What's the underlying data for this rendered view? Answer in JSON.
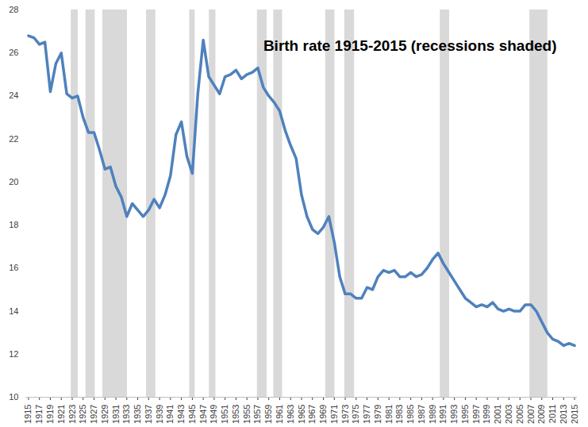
{
  "chart_data": {
    "type": "line",
    "title": "Birth rate 1915-2015 (recessions shaded)",
    "x": [
      1915,
      1916,
      1917,
      1918,
      1919,
      1920,
      1921,
      1922,
      1923,
      1924,
      1925,
      1926,
      1927,
      1928,
      1929,
      1930,
      1931,
      1932,
      1933,
      1934,
      1935,
      1936,
      1937,
      1938,
      1939,
      1940,
      1941,
      1942,
      1943,
      1944,
      1945,
      1946,
      1947,
      1948,
      1949,
      1950,
      1951,
      1952,
      1953,
      1954,
      1955,
      1956,
      1957,
      1958,
      1959,
      1960,
      1961,
      1962,
      1963,
      1964,
      1965,
      1966,
      1967,
      1968,
      1969,
      1970,
      1971,
      1972,
      1973,
      1974,
      1975,
      1976,
      1977,
      1978,
      1979,
      1980,
      1981,
      1982,
      1983,
      1984,
      1985,
      1986,
      1987,
      1988,
      1989,
      1990,
      1991,
      1992,
      1993,
      1994,
      1995,
      1996,
      1997,
      1998,
      1999,
      2000,
      2001,
      2002,
      2003,
      2004,
      2005,
      2006,
      2007,
      2008,
      2009,
      2010,
      2011,
      2012,
      2013,
      2014,
      2015
    ],
    "values": [
      26.8,
      26.7,
      26.4,
      26.5,
      24.2,
      25.5,
      26.0,
      24.1,
      23.9,
      24.0,
      23.0,
      22.3,
      22.3,
      21.5,
      20.6,
      20.7,
      19.8,
      19.3,
      18.4,
      19.0,
      18.7,
      18.4,
      18.7,
      19.2,
      18.8,
      19.4,
      20.3,
      22.2,
      22.8,
      21.2,
      20.4,
      24.1,
      26.6,
      24.9,
      24.5,
      24.1,
      24.9,
      25.0,
      25.2,
      24.8,
      25.0,
      25.1,
      25.3,
      24.4,
      24.0,
      23.7,
      23.3,
      22.4,
      21.7,
      21.1,
      19.4,
      18.4,
      17.8,
      17.6,
      17.9,
      18.4,
      17.2,
      15.6,
      14.8,
      14.8,
      14.6,
      14.6,
      15.1,
      15.0,
      15.6,
      15.9,
      15.8,
      15.9,
      15.6,
      15.6,
      15.8,
      15.6,
      15.7,
      16.0,
      16.4,
      16.7,
      16.2,
      15.8,
      15.4,
      15.0,
      14.6,
      14.4,
      14.2,
      14.3,
      14.2,
      14.4,
      14.1,
      14.0,
      14.1,
      14.0,
      14.0,
      14.3,
      14.3,
      14.0,
      13.5,
      13.0,
      12.7,
      12.6,
      12.4,
      12.5,
      12.4
    ],
    "color": "#4f81bd",
    "recessions": [
      [
        1922.8,
        1924.1
      ],
      [
        1925.5,
        1927.2
      ],
      [
        1928.6,
        1933.1
      ],
      [
        1936.6,
        1938.3
      ],
      [
        1944.5,
        1945.5
      ],
      [
        1948.1,
        1949.3
      ],
      [
        1956.9,
        1958.7
      ],
      [
        1959.9,
        1961.5
      ],
      [
        1969.4,
        1971.1
      ],
      [
        1972.9,
        1974.7
      ],
      [
        1990.4,
        1992.1
      ],
      [
        2006.8,
        2010.1
      ]
    ],
    "xlim": [
      1914.5,
      2015.5
    ],
    "xticks": [
      1915,
      1917,
      1919,
      1921,
      1923,
      1925,
      1927,
      1929,
      1931,
      1933,
      1935,
      1937,
      1939,
      1941,
      1943,
      1945,
      1947,
      1949,
      1951,
      1953,
      1955,
      1957,
      1959,
      1961,
      1963,
      1965,
      1967,
      1969,
      1971,
      1973,
      1975,
      1977,
      1979,
      1981,
      1983,
      1985,
      1987,
      1989,
      1991,
      1993,
      1995,
      1997,
      1999,
      2001,
      2003,
      2005,
      2007,
      2009,
      2011,
      2013,
      2015
    ],
    "ylim": [
      10,
      28
    ],
    "yticks": [
      10,
      12,
      14,
      16,
      18,
      20,
      22,
      24,
      26,
      28
    ],
    "grid": false
  }
}
